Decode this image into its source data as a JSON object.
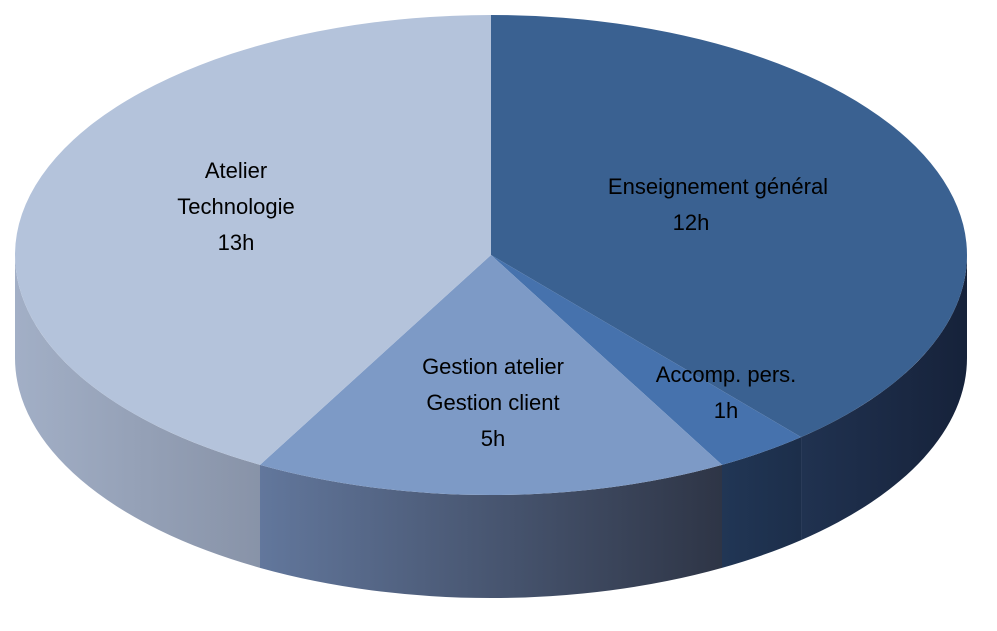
{
  "chart_data": {
    "type": "pie",
    "style": "3d",
    "unit": "h",
    "slices": [
      {
        "label_lines": [
          "Enseignement général",
          "12h"
        ],
        "value": 12,
        "color": "#3a6191",
        "side_color": "#1b2a42"
      },
      {
        "label_lines": [
          "Accomp. pers.",
          "1h"
        ],
        "value": 1,
        "color": "#4672ad",
        "side_color": "#1f3452"
      },
      {
        "label_lines": [
          "Gestion atelier",
          "Gestion client",
          "5h"
        ],
        "value": 5,
        "color": "#7d9ac6",
        "side_color": "#4e6184"
      },
      {
        "label_lines": [
          "Atelier",
          "Technologie",
          "13h"
        ],
        "value": 13,
        "color": "#b4c3db",
        "side_color": "#8e9ab0"
      }
    ]
  }
}
